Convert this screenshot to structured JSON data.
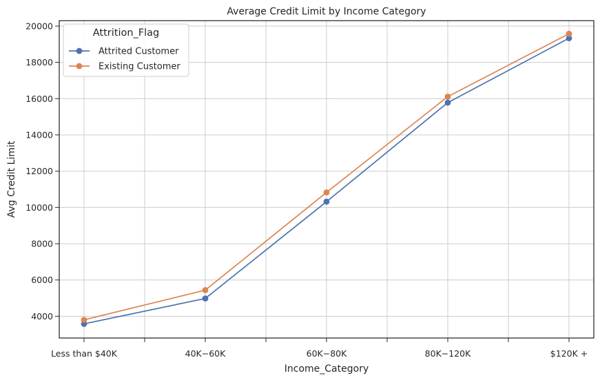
{
  "chart_data": {
    "type": "line",
    "title": "Average Credit Limit by Income Category",
    "xlabel": "Income_Category",
    "ylabel": "Avg Credit Limit",
    "categories": [
      "Less than $40K",
      "$40K - $60K",
      "$60K - $80K",
      "$80K - $120K",
      "$120K +"
    ],
    "category_labels_rendered": [
      "Less than $40K",
      "40K−60K",
      "60K−80K",
      "80K−120K",
      "$120K +"
    ],
    "series": [
      {
        "name": "Attrited Customer",
        "color": "#4c72b0",
        "values": [
          3580,
          4980,
          10320,
          15780,
          19330
        ]
      },
      {
        "name": "Existing Customer",
        "color": "#dd8452",
        "values": [
          3800,
          5440,
          10830,
          16110,
          19580
        ]
      }
    ],
    "ylim": [
      2800,
      20300
    ],
    "yticks": [
      4000,
      6000,
      8000,
      10000,
      12000,
      14000,
      16000,
      18000,
      20000
    ],
    "grid": true,
    "legend": {
      "title": "Attrition_Flag",
      "placement": "top-left"
    }
  }
}
